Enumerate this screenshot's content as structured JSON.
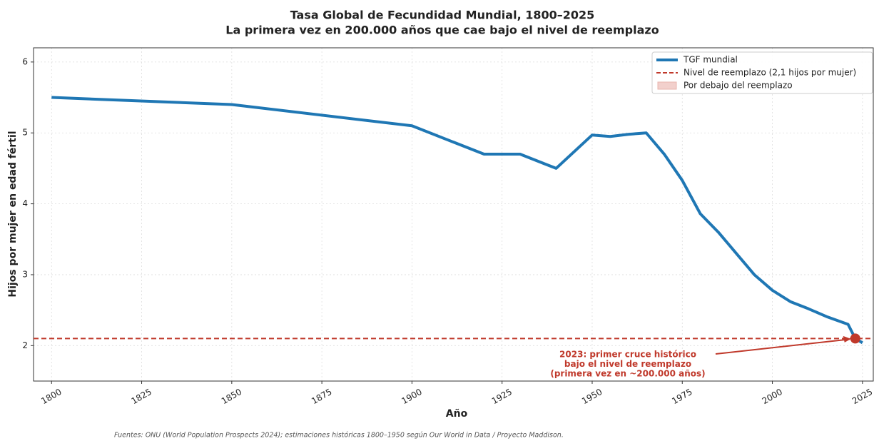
{
  "chart_data": {
    "type": "line",
    "title": "Tasa Global de Fecundidad Mundial, 1800–2025",
    "subtitle": "La primera vez en 200.000 años que cae bajo el nivel de reemplazo",
    "x_label": "Año",
    "y_label": "Hijos por mujer en edad fértil",
    "x": [
      1800,
      1850,
      1900,
      1920,
      1930,
      1940,
      1950,
      1955,
      1960,
      1965,
      1970,
      1975,
      1980,
      1985,
      1990,
      1995,
      2000,
      2005,
      2010,
      2015,
      2021,
      2023,
      2025
    ],
    "series": [
      {
        "name": "TGF mundial",
        "color": "#1f77b4",
        "values": [
          5.5,
          5.4,
          5.1,
          4.7,
          4.7,
          4.5,
          4.97,
          4.95,
          4.98,
          5.0,
          4.7,
          4.33,
          3.86,
          3.6,
          3.3,
          3.0,
          2.78,
          2.62,
          2.52,
          2.41,
          2.3,
          2.1,
          2.04
        ]
      }
    ],
    "reference_line": {
      "name": "Nivel de reemplazo (2,1 hijos por mujer)",
      "value": 2.1,
      "color": "#c0392b"
    },
    "below_area": {
      "name": "Por debajo del reemplazo",
      "color": "#f2d0cc"
    },
    "highlight_point": {
      "x": 2023,
      "y": 2.1,
      "color": "#c0392b"
    },
    "annotation": [
      "2023: primer cruce histórico",
      "bajo el nivel de reemplazo",
      "(primera vez en ~200.000 años)"
    ],
    "source": "Fuentes: ONU (World Population Prospects 2024); estimaciones históricas 1800–1950 según Our World in Data / Proyecto Maddison.",
    "xlim": [
      1795,
      2028
    ],
    "ylim": [
      1.5,
      6.2
    ],
    "xticks": [
      1800,
      1825,
      1850,
      1875,
      1900,
      1925,
      1950,
      1975,
      2000,
      2025
    ],
    "yticks": [
      2,
      3,
      4,
      5,
      6
    ],
    "grid": true,
    "legend": "upper right"
  }
}
